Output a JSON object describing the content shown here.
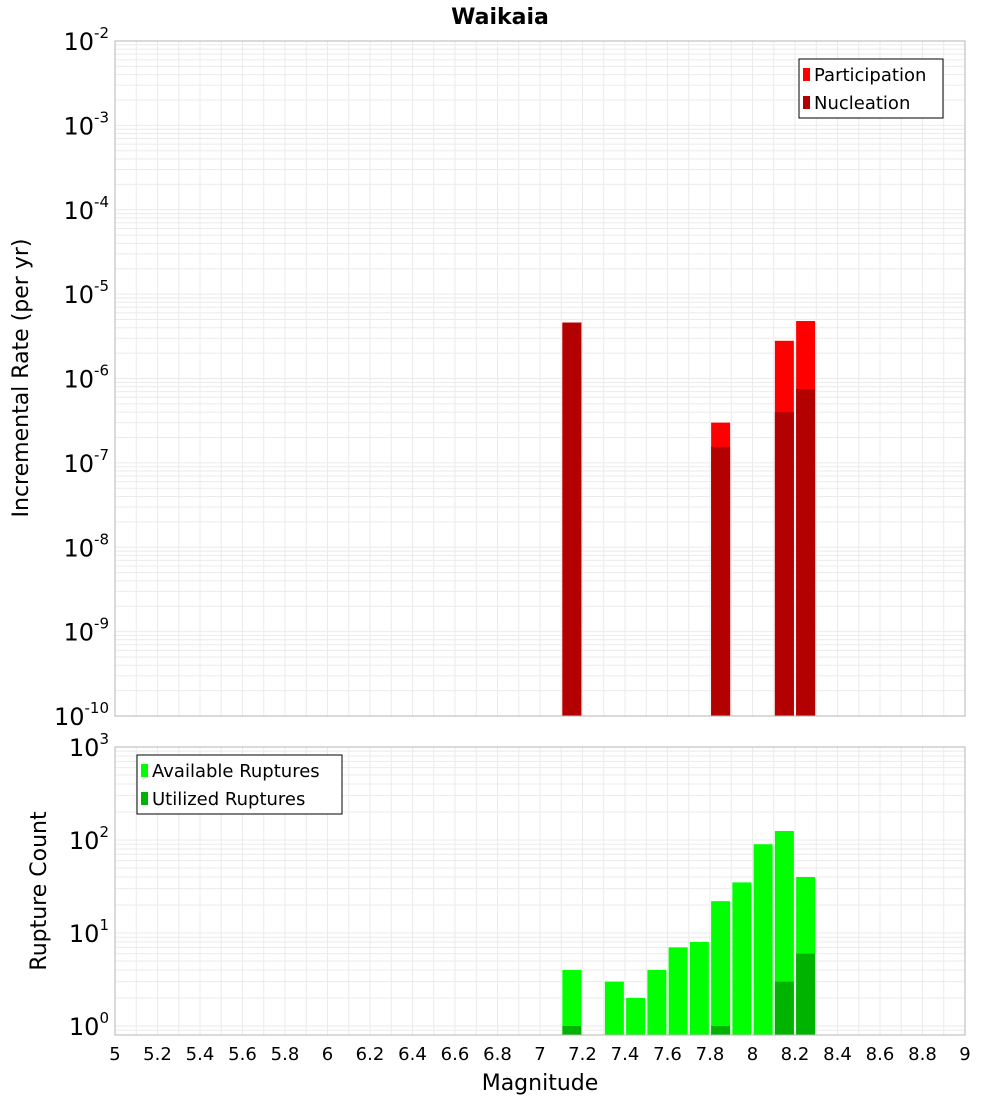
{
  "title": "Waikaia",
  "chart_data": [
    {
      "type": "bar",
      "ylabel": "Incremental Rate (per yr)",
      "yscale": "log",
      "ylim": [
        1e-10,
        0.01
      ],
      "ytick_exponents": [
        -10,
        -9,
        -8,
        -7,
        -6,
        -5,
        -4,
        -3,
        -2
      ],
      "ytick_base": "10",
      "xlim": [
        5,
        9
      ],
      "legend": {
        "position": "top-right",
        "entries": [
          {
            "label": "Participation",
            "color": "#ff0000"
          },
          {
            "label": "Nucleation",
            "color": "#b30000"
          }
        ]
      },
      "series": [
        {
          "name": "Participation",
          "color": "#ff0000",
          "points": [
            {
              "x": 7.15,
              "y": 4.6e-06
            },
            {
              "x": 7.85,
              "y": 3e-07
            },
            {
              "x": 8.15,
              "y": 2.8e-06
            },
            {
              "x": 8.25,
              "y": 4.8e-06
            }
          ]
        },
        {
          "name": "Nucleation",
          "color": "#b30000",
          "points": [
            {
              "x": 7.15,
              "y": 4.6e-06
            },
            {
              "x": 7.85,
              "y": 1.55e-07
            },
            {
              "x": 8.15,
              "y": 4e-07
            },
            {
              "x": 8.25,
              "y": 7.5e-07
            }
          ]
        }
      ]
    },
    {
      "type": "bar",
      "ylabel": "Rupture Count",
      "xlabel": "Magnitude",
      "yscale": "log",
      "ylim": [
        0.8,
        1000
      ],
      "ytick_exponents": [
        0,
        1,
        2,
        3
      ],
      "ytick_base": "10",
      "xlim": [
        5,
        9
      ],
      "xticks": [
        "5",
        "5.2",
        "5.4",
        "5.6",
        "5.8",
        "6",
        "6.2",
        "6.4",
        "6.6",
        "6.8",
        "7",
        "7.2",
        "7.4",
        "7.6",
        "7.8",
        "8",
        "8.2",
        "8.4",
        "8.6",
        "8.8",
        "9"
      ],
      "legend": {
        "position": "top-left",
        "entries": [
          {
            "label": "Available Ruptures",
            "color": "#00ff00"
          },
          {
            "label": "Utilized Ruptures",
            "color": "#00b300"
          }
        ]
      },
      "series": [
        {
          "name": "Available Ruptures",
          "color": "#00ff00",
          "points": [
            {
              "x": 7.15,
              "y": 4
            },
            {
              "x": 7.35,
              "y": 3
            },
            {
              "x": 7.45,
              "y": 2
            },
            {
              "x": 7.55,
              "y": 4
            },
            {
              "x": 7.65,
              "y": 7
            },
            {
              "x": 7.75,
              "y": 8
            },
            {
              "x": 7.85,
              "y": 22
            },
            {
              "x": 7.95,
              "y": 35
            },
            {
              "x": 8.05,
              "y": 90
            },
            {
              "x": 8.15,
              "y": 125
            },
            {
              "x": 8.25,
              "y": 40
            }
          ]
        },
        {
          "name": "Utilized Ruptures",
          "color": "#00b300",
          "points": [
            {
              "x": 7.15,
              "y": 1
            },
            {
              "x": 7.85,
              "y": 1
            },
            {
              "x": 8.15,
              "y": 3
            },
            {
              "x": 8.25,
              "y": 6
            }
          ]
        }
      ]
    }
  ]
}
